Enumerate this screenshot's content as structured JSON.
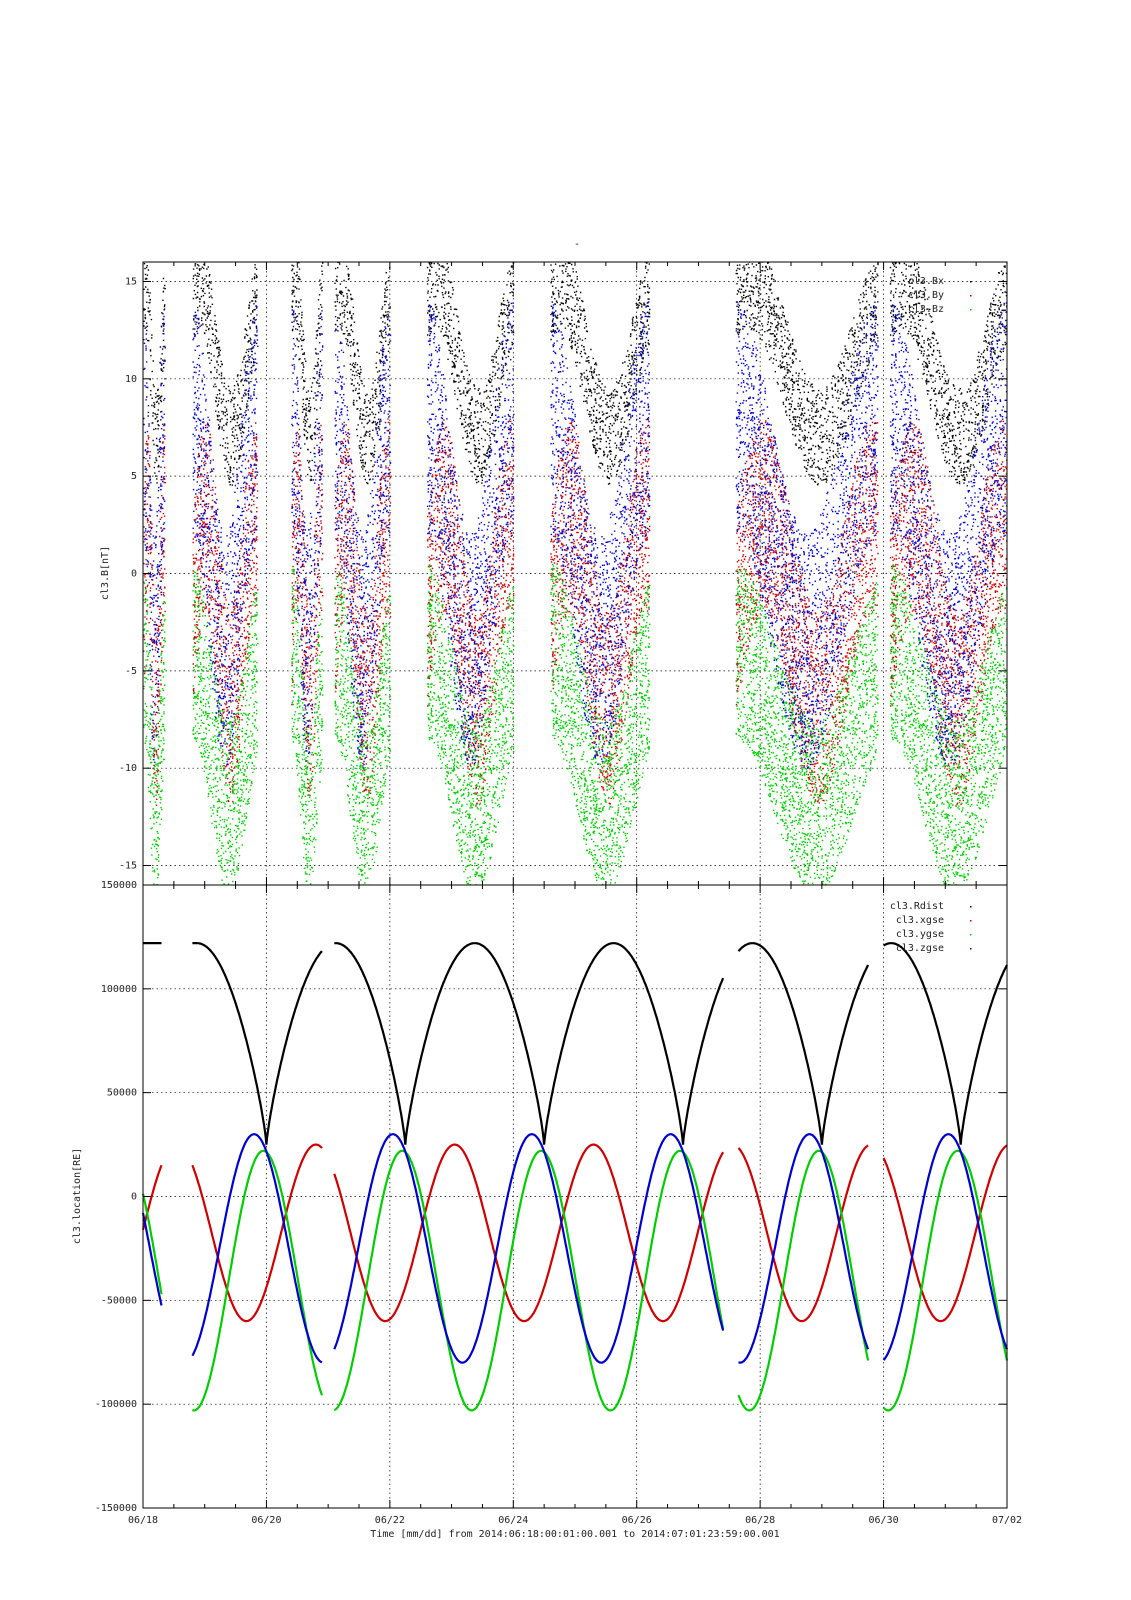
{
  "colors": {
    "black": "#000000",
    "red": "#cc0000",
    "green": "#00cc00",
    "blue": "#0000cc"
  },
  "chart_data": [
    {
      "type": "scatter",
      "title": "-",
      "ylabel": "cl3.B[nT]",
      "xlim": [
        "06/18",
        "07/02"
      ],
      "ylim": [
        -16,
        16
      ],
      "grid": true,
      "yticks": [
        15,
        10,
        5,
        0,
        -5,
        -10,
        -15
      ],
      "legend": {
        "placement": "top-right",
        "entries": [
          "cl3.Bx",
          "cl3.By",
          "cl3.Bz"
        ]
      },
      "series": [
        {
          "name": "cl3.Bx",
          "color": "black",
          "note_values": "scattered magnetic field points, estimated envelope in days since 06/18",
          "segments_days": [
            [
              0.0,
              0.35
            ],
            [
              0.8,
              1.85
            ],
            [
              2.4,
              2.9
            ],
            [
              3.1,
              4.0
            ],
            [
              4.6,
              6.0
            ],
            [
              6.6,
              8.2
            ],
            [
              9.6,
              11.9
            ],
            [
              12.1,
              14.0
            ]
          ]
        },
        {
          "name": "cl3.By",
          "color": "red",
          "segments_days": [
            [
              0.0,
              0.35
            ],
            [
              0.8,
              1.85
            ],
            [
              2.4,
              2.9
            ],
            [
              3.1,
              4.0
            ],
            [
              4.6,
              6.0
            ],
            [
              6.6,
              8.2
            ],
            [
              9.6,
              11.9
            ],
            [
              12.1,
              14.0
            ]
          ]
        },
        {
          "name": "cl3.Bz",
          "color": "green",
          "segments_days": [
            [
              0.0,
              0.35
            ],
            [
              0.8,
              1.85
            ],
            [
              2.4,
              2.9
            ],
            [
              3.1,
              4.0
            ],
            [
              4.6,
              6.0
            ],
            [
              6.6,
              8.2
            ],
            [
              9.6,
              11.9
            ],
            [
              12.1,
              14.0
            ]
          ]
        }
      ]
    },
    {
      "type": "line",
      "ylabel": "cl3.location[RE]",
      "xlabel": "Time [mm/dd]  from 2014:06:18:00:01:00.001  to  2014:07:01:23:59:00.001",
      "xticks": [
        "06/18",
        "06/20",
        "06/22",
        "06/24",
        "06/26",
        "06/28",
        "06/30",
        "07/02"
      ],
      "ylim": [
        -150000,
        150000
      ],
      "yticks": [
        "150000",
        "100000",
        "50000",
        "0",
        "-50000",
        "-100000",
        "-150000"
      ],
      "grid": true,
      "legend": {
        "placement": "top-right",
        "entries": [
          "cl3.Rdist",
          "cl3.xgse",
          "cl3.ygse",
          "cl3.zgse"
        ]
      },
      "segments_days": [
        [
          0.0,
          0.3
        ],
        [
          0.8,
          2.9
        ],
        [
          3.1,
          9.4
        ],
        [
          9.65,
          11.75
        ],
        [
          12.0,
          14.0
        ]
      ],
      "series": [
        {
          "name": "cl3.Rdist",
          "color": "black",
          "perigee_days": [
            2.0,
            4.25,
            6.5,
            8.75,
            11.0,
            13.25
          ],
          "min": 25000,
          "max": 122000
        },
        {
          "name": "cl3.xgse",
          "color": "red",
          "perigee_days": [
            2.0,
            4.25,
            6.5,
            8.75,
            11.0,
            13.25
          ],
          "min": -60000,
          "max": 25000
        },
        {
          "name": "cl3.ygse",
          "color": "green",
          "perigee_days": [
            2.0,
            4.25,
            6.5,
            8.75,
            11.0,
            13.25
          ],
          "min": -103000,
          "max": 22000
        },
        {
          "name": "cl3.zgse",
          "color": "blue",
          "perigee_days": [
            2.0,
            4.25,
            6.5,
            8.75,
            11.0,
            13.25
          ],
          "min": -80000,
          "max": 30000
        }
      ]
    }
  ]
}
